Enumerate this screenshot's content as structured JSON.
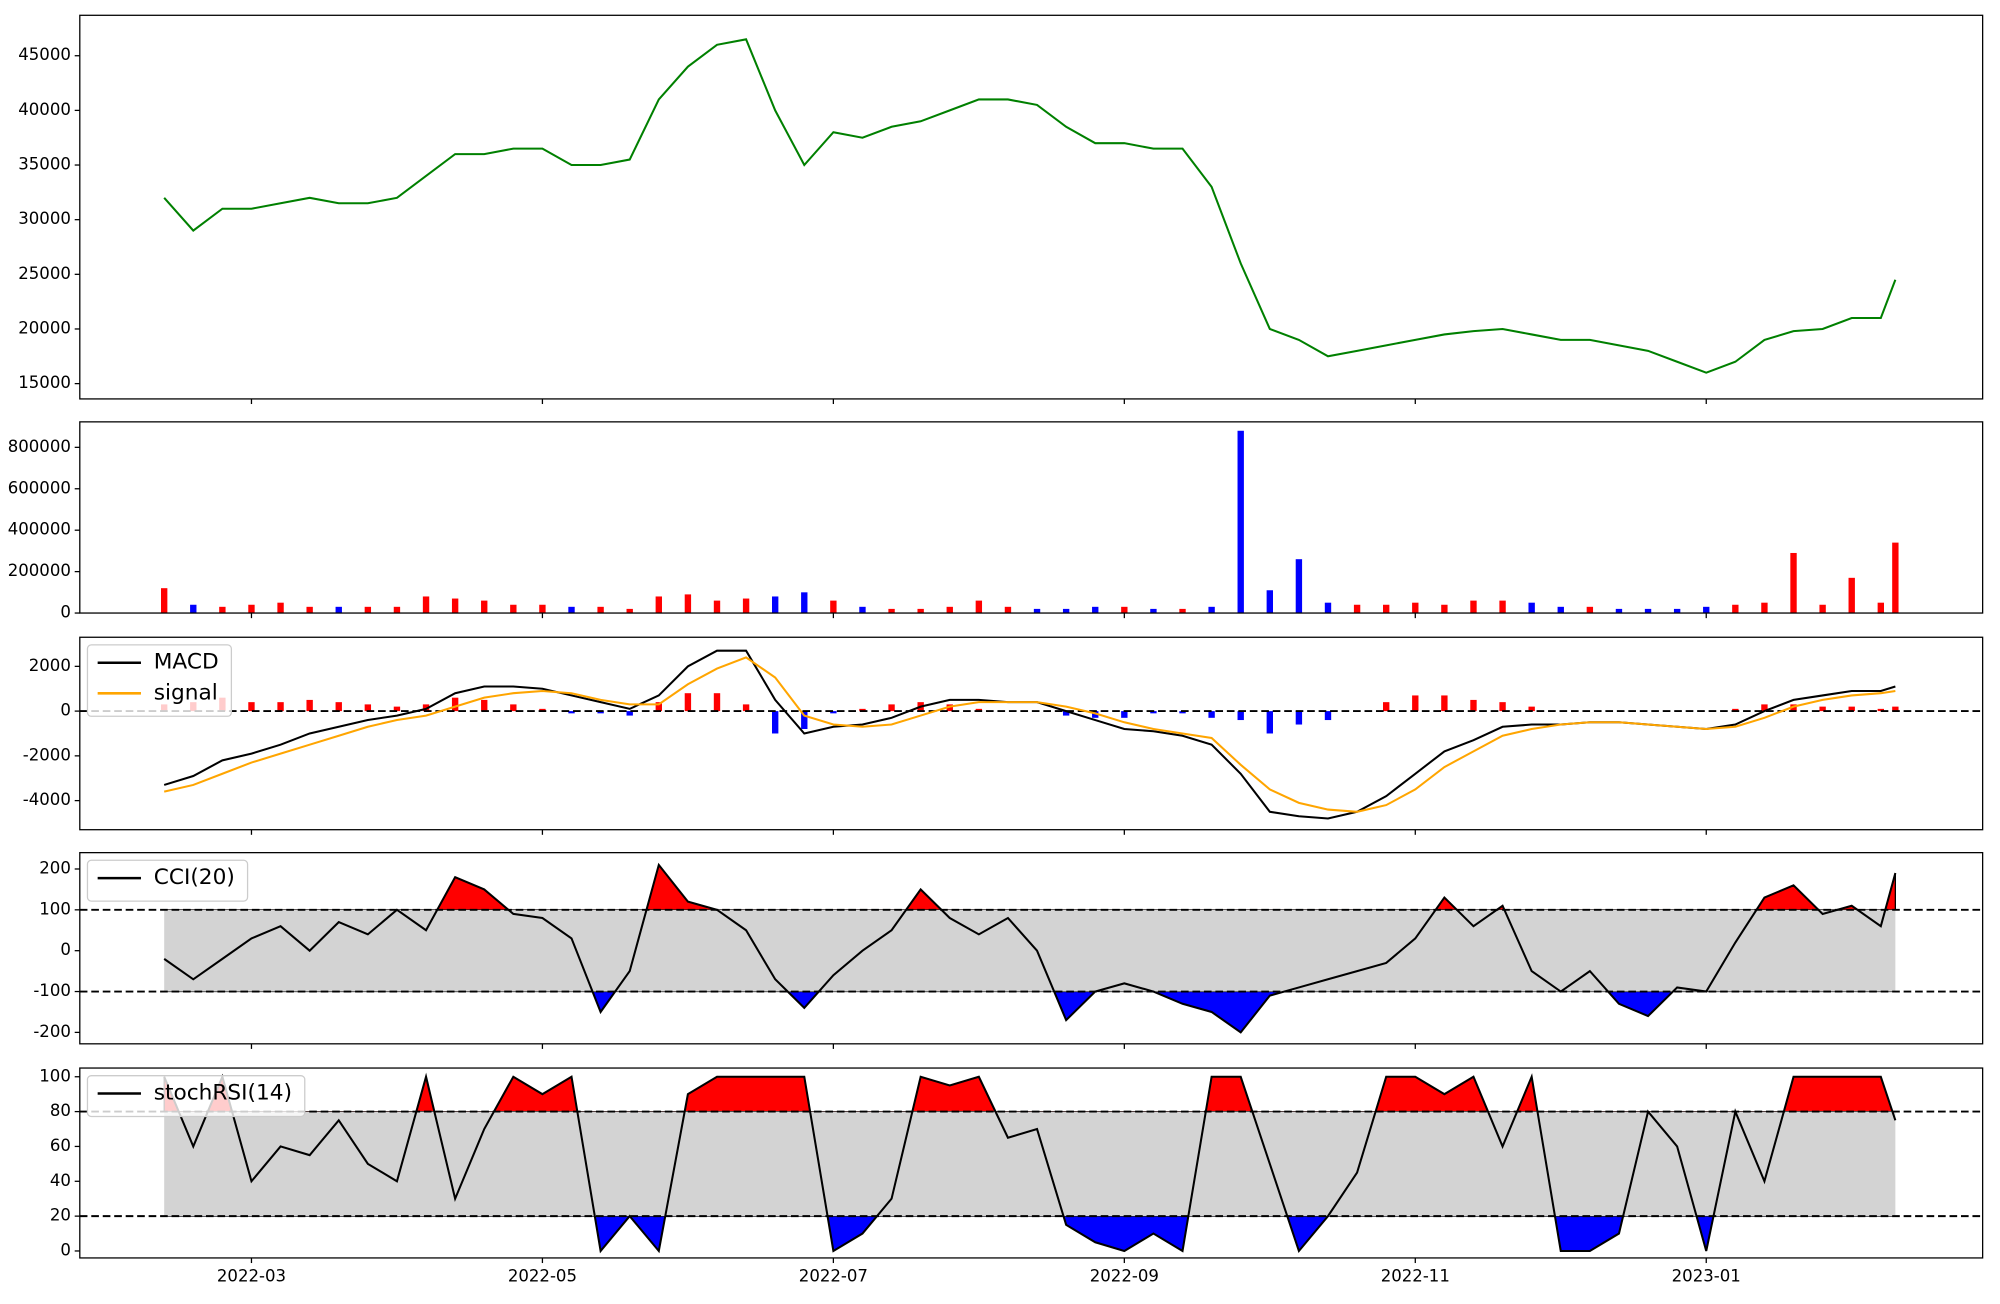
{
  "chart_data": [
    {
      "type": "line",
      "ylim": [
        13600,
        48700
      ],
      "yticks": [
        15000,
        20000,
        25000,
        30000,
        35000,
        40000,
        45000
      ],
      "series": [
        {
          "color": "green",
          "type": "line",
          "values": [
            32000,
            29000,
            31000,
            31000,
            31500,
            32000,
            31500,
            31500,
            32000,
            34000,
            36000,
            36000,
            36500,
            36500,
            35000,
            35000,
            35500,
            41000,
            44000,
            46000,
            46500,
            40000,
            35000,
            38000,
            37500,
            38500,
            39000,
            40000,
            41000,
            41000,
            40500,
            38500,
            37000,
            37000,
            36500,
            36500,
            33000,
            26000,
            20000,
            19000,
            17500,
            18000,
            18500,
            19000,
            19500,
            19800,
            20000,
            19500,
            19000,
            19000,
            18500,
            18000,
            17000,
            16000,
            17000,
            19000,
            19800,
            20000,
            21000,
            21000,
            24500
          ]
        }
      ]
    },
    {
      "type": "bar",
      "ylim": [
        0,
        923000
      ],
      "yticks": [
        0,
        200000,
        400000,
        600000,
        800000
      ],
      "series": [
        {
          "type": "bar",
          "up_color": "red",
          "down_color": "blue",
          "values": [
            120000,
            40000,
            30000,
            40000,
            50000,
            30000,
            30000,
            30000,
            30000,
            80000,
            70000,
            60000,
            40000,
            40000,
            30000,
            30000,
            20000,
            80000,
            90000,
            60000,
            70000,
            80000,
            100000,
            60000,
            30000,
            20000,
            20000,
            30000,
            60000,
            30000,
            20000,
            20000,
            30000,
            30000,
            20000,
            20000,
            30000,
            880000,
            110000,
            260000,
            50000,
            40000,
            40000,
            50000,
            40000,
            60000,
            60000,
            50000,
            30000,
            30000,
            20000,
            20000,
            20000,
            30000,
            40000,
            50000,
            290000,
            40000,
            170000,
            50000,
            340000
          ]
        }
      ]
    },
    {
      "type": "line",
      "ylim": [
        -5300,
        3300
      ],
      "yticks": [
        -4000,
        -2000,
        0,
        2000
      ],
      "hline": 0,
      "legend": "upper left",
      "series": [
        {
          "name": "MACD",
          "color": "black",
          "type": "line",
          "values": [
            -3300,
            -2900,
            -2200,
            -1900,
            -1500,
            -1000,
            -700,
            -400,
            -200,
            100,
            800,
            1100,
            1100,
            1000,
            700,
            400,
            100,
            700,
            2000,
            2700,
            2700,
            500,
            -1000,
            -700,
            -600,
            -300,
            200,
            500,
            500,
            400,
            400,
            0,
            -400,
            -800,
            -900,
            -1100,
            -1500,
            -2800,
            -4500,
            -4700,
            -4800,
            -4500,
            -3800,
            -2800,
            -1800,
            -1300,
            -700,
            -600,
            -600,
            -500,
            -500,
            -600,
            -700,
            -800,
            -600,
            0,
            500,
            700,
            900,
            900,
            1100
          ]
        },
        {
          "name": "signal",
          "color": "orange",
          "type": "line",
          "values": [
            -3600,
            -3300,
            -2800,
            -2300,
            -1900,
            -1500,
            -1100,
            -700,
            -400,
            -200,
            200,
            600,
            800,
            900,
            800,
            500,
            300,
            300,
            1200,
            1900,
            2400,
            1500,
            -200,
            -600,
            -700,
            -600,
            -200,
            200,
            400,
            400,
            400,
            200,
            -100,
            -500,
            -800,
            -1000,
            -1200,
            -2400,
            -3500,
            -4100,
            -4400,
            -4500,
            -4200,
            -3500,
            -2500,
            -1800,
            -1100,
            -800,
            -600,
            -500,
            -500,
            -600,
            -700,
            -800,
            -700,
            -300,
            200,
            500,
            700,
            800,
            900
          ]
        },
        {
          "type": "bar",
          "pos_color": "red",
          "neg_color": "blue",
          "values": [
            300,
            400,
            600,
            400,
            400,
            500,
            400,
            300,
            200,
            300,
            600,
            500,
            300,
            100,
            -100,
            -100,
            -200,
            400,
            800,
            800,
            300,
            -1000,
            -800,
            -100,
            100,
            300,
            400,
            300,
            100,
            0,
            0,
            -200,
            -300,
            -300,
            -100,
            -100,
            -300,
            -400,
            -1000,
            -600,
            -400,
            0,
            400,
            700,
            700,
            500,
            400,
            200,
            0,
            0,
            0,
            0,
            0,
            0,
            100,
            300,
            300,
            200,
            200,
            100,
            200
          ]
        }
      ]
    },
    {
      "type": "line",
      "ylim": [
        -228,
        240
      ],
      "yticks": [
        -200,
        -100,
        0,
        100,
        200
      ],
      "legend": "upper left",
      "upper": 100,
      "lower": -100,
      "upper_color": "red",
      "lower_color": "blue",
      "band_color": "lightgray",
      "series": [
        {
          "name": "CCI(20)",
          "color": "black",
          "type": "line",
          "values": [
            -20,
            -70,
            -20,
            30,
            60,
            0,
            70,
            40,
            100,
            50,
            180,
            150,
            90,
            80,
            30,
            -150,
            -50,
            210,
            120,
            100,
            50,
            -70,
            -140,
            -60,
            0,
            50,
            150,
            80,
            40,
            80,
            0,
            -170,
            -100,
            -80,
            -100,
            -130,
            -150,
            -200,
            -110,
            -90,
            -70,
            -50,
            -30,
            30,
            130,
            60,
            110,
            -50,
            -100,
            -50,
            -130,
            -160,
            -90,
            -100,
            20,
            130,
            160,
            90,
            110,
            60,
            190
          ]
        }
      ]
    },
    {
      "type": "line",
      "ylim": [
        -4,
        105
      ],
      "yticks": [
        0,
        20,
        40,
        60,
        80,
        100
      ],
      "legend": "upper left",
      "upper": 80,
      "lower": 20,
      "upper_color": "red",
      "lower_color": "blue",
      "band_color": "lightgray",
      "xlim": [
        0.82,
        13.9
      ],
      "xticks": [
        {
          "value": 2,
          "label": "2022-03"
        },
        {
          "value": 4,
          "label": "2022-05"
        },
        {
          "value": 6,
          "label": "2022-07"
        },
        {
          "value": 8,
          "label": "2022-09"
        },
        {
          "value": 10,
          "label": "2022-11"
        },
        {
          "value": 12,
          "label": "2023-01"
        }
      ],
      "x": [
        1.4,
        1.6,
        1.8,
        2.0,
        2.2,
        2.4,
        2.6,
        2.8,
        3.0,
        3.2,
        3.4,
        3.6,
        3.8,
        4.0,
        4.2,
        4.4,
        4.6,
        4.8,
        5.0,
        5.2,
        5.4,
        5.6,
        5.8,
        6.0,
        6.2,
        6.4,
        6.6,
        6.8,
        7.0,
        7.2,
        7.4,
        7.6,
        7.8,
        8.0,
        8.2,
        8.4,
        8.6,
        8.8,
        9.0,
        9.2,
        9.4,
        9.6,
        9.8,
        10.0,
        10.2,
        10.4,
        10.6,
        10.8,
        11.0,
        11.2,
        11.4,
        11.6,
        11.8,
        12.0,
        12.2,
        12.4,
        12.6,
        12.8,
        13.0,
        13.2,
        13.3
      ],
      "series": [
        {
          "name": "stochRSI(14)",
          "color": "black",
          "type": "line",
          "values": [
            100,
            60,
            100,
            40,
            60,
            55,
            75,
            50,
            40,
            100,
            30,
            70,
            100,
            90,
            100,
            0,
            20,
            0,
            90,
            100,
            100,
            100,
            100,
            0,
            10,
            30,
            100,
            95,
            100,
            65,
            70,
            15,
            5,
            0,
            10,
            0,
            100,
            100,
            50,
            0,
            20,
            45,
            100,
            100,
            90,
            100,
            60,
            100,
            0,
            0,
            10,
            80,
            60,
            0,
            80,
            40,
            100,
            100,
            100,
            100,
            75
          ]
        }
      ]
    }
  ]
}
